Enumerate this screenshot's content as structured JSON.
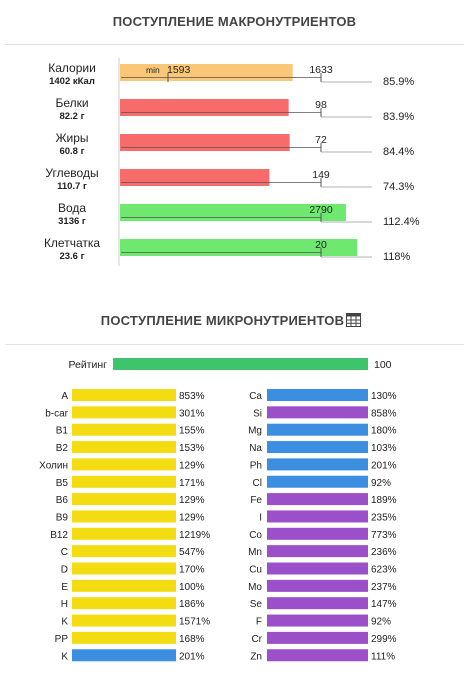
{
  "macro": {
    "title": "ПОСТУПЛЕНИЕ МАКРОНУТРИЕНТОВ",
    "min_label": "min",
    "items": [
      {
        "name": "Калории",
        "amount": "1402 кКал",
        "target_low": "1593",
        "target_high": "1633",
        "percent_label": "85.9%",
        "percent": 85.9,
        "color": "#f9c775"
      },
      {
        "name": "Белки",
        "amount": "82.2 г",
        "target": "98",
        "percent_label": "83.9%",
        "percent": 83.9,
        "color": "#f76b6b"
      },
      {
        "name": "Жиры",
        "amount": "60.8 г",
        "target": "72",
        "percent_label": "84.4%",
        "percent": 84.4,
        "color": "#f76b6b"
      },
      {
        "name": "Углеводы",
        "amount": "110.7 г",
        "target": "149",
        "percent_label": "74.3%",
        "percent": 74.3,
        "color": "#f76b6b"
      },
      {
        "name": "Вода",
        "amount": "3136 г",
        "target": "2790",
        "percent_label": "112.4%",
        "percent": 112.4,
        "color": "#6ee86e"
      },
      {
        "name": "Клетчатка",
        "amount": "23.6 г",
        "target": "20",
        "percent_label": "118%",
        "percent": 118,
        "color": "#6ee86e"
      }
    ]
  },
  "micro": {
    "title": "ПОСТУПЛЕНИЕ МИКРОНУТРИЕНТОВ",
    "icon": "table-icon",
    "rating": {
      "label": "Рейтинг",
      "value": "100",
      "color": "#3ec46a"
    },
    "left": [
      {
        "name": "A",
        "value": "853%",
        "color": "#f3dc12"
      },
      {
        "name": "b-car",
        "value": "301%",
        "color": "#f3dc12"
      },
      {
        "name": "B1",
        "value": "155%",
        "color": "#f3dc12"
      },
      {
        "name": "B2",
        "value": "153%",
        "color": "#f3dc12"
      },
      {
        "name": "Холин",
        "value": "129%",
        "color": "#f3dc12"
      },
      {
        "name": "B5",
        "value": "171%",
        "color": "#f3dc12"
      },
      {
        "name": "B6",
        "value": "129%",
        "color": "#f3dc12"
      },
      {
        "name": "B9",
        "value": "129%",
        "color": "#f3dc12"
      },
      {
        "name": "B12",
        "value": "1219%",
        "color": "#f3dc12"
      },
      {
        "name": "C",
        "value": "547%",
        "color": "#f3dc12"
      },
      {
        "name": "D",
        "value": "170%",
        "color": "#f3dc12"
      },
      {
        "name": "E",
        "value": "100%",
        "color": "#f3dc12"
      },
      {
        "name": "H",
        "value": "186%",
        "color": "#f3dc12"
      },
      {
        "name": "K",
        "value": "1571%",
        "color": "#f3dc12"
      },
      {
        "name": "PP",
        "value": "168%",
        "color": "#f3dc12"
      },
      {
        "name": "K",
        "value": "201%",
        "color": "#3b8ee0"
      }
    ],
    "right": [
      {
        "name": "Ca",
        "value": "130%",
        "color": "#3b8ee0"
      },
      {
        "name": "Si",
        "value": "858%",
        "color": "#9b4fc8"
      },
      {
        "name": "Mg",
        "value": "180%",
        "color": "#3b8ee0"
      },
      {
        "name": "Na",
        "value": "103%",
        "color": "#3b8ee0"
      },
      {
        "name": "Ph",
        "value": "201%",
        "color": "#3b8ee0"
      },
      {
        "name": "Cl",
        "value": "92%",
        "color": "#3b8ee0"
      },
      {
        "name": "Fe",
        "value": "189%",
        "color": "#9b4fc8"
      },
      {
        "name": "I",
        "value": "235%",
        "color": "#9b4fc8"
      },
      {
        "name": "Co",
        "value": "773%",
        "color": "#9b4fc8"
      },
      {
        "name": "Mn",
        "value": "236%",
        "color": "#9b4fc8"
      },
      {
        "name": "Cu",
        "value": "623%",
        "color": "#9b4fc8"
      },
      {
        "name": "Mo",
        "value": "237%",
        "color": "#9b4fc8"
      },
      {
        "name": "Se",
        "value": "147%",
        "color": "#9b4fc8"
      },
      {
        "name": "F",
        "value": "92%",
        "color": "#9b4fc8"
      },
      {
        "name": "Cr",
        "value": "299%",
        "color": "#9b4fc8"
      },
      {
        "name": "Zn",
        "value": "111%",
        "color": "#9b4fc8"
      }
    ]
  },
  "chart_data": [
    {
      "type": "bar",
      "title": "ПОСТУПЛЕНИЕ МАКРОНУТРИЕНТОВ",
      "categories": [
        "Калории",
        "Белки",
        "Жиры",
        "Углеводы",
        "Вода",
        "Клетчатка"
      ],
      "values": [
        85.9,
        83.9,
        84.4,
        74.3,
        112.4,
        118
      ]
    },
    {
      "type": "bar",
      "title": "ПОСТУПЛЕНИЕ МИКРОНУТРИЕНТОВ",
      "categories": [
        "A",
        "b-car",
        "B1",
        "B2",
        "Холин",
        "B5",
        "B6",
        "B9",
        "B12",
        "C",
        "D",
        "E",
        "H",
        "K",
        "PP",
        "K",
        "Ca",
        "Si",
        "Mg",
        "Na",
        "Ph",
        "Cl",
        "Fe",
        "I",
        "Co",
        "Mn",
        "Cu",
        "Mo",
        "Se",
        "F",
        "Cr",
        "Zn"
      ],
      "values": [
        853,
        301,
        155,
        153,
        129,
        171,
        129,
        129,
        1219,
        547,
        170,
        100,
        186,
        1571,
        168,
        201,
        130,
        858,
        180,
        103,
        201,
        92,
        189,
        235,
        773,
        236,
        623,
        237,
        147,
        92,
        299,
        111
      ]
    }
  ]
}
